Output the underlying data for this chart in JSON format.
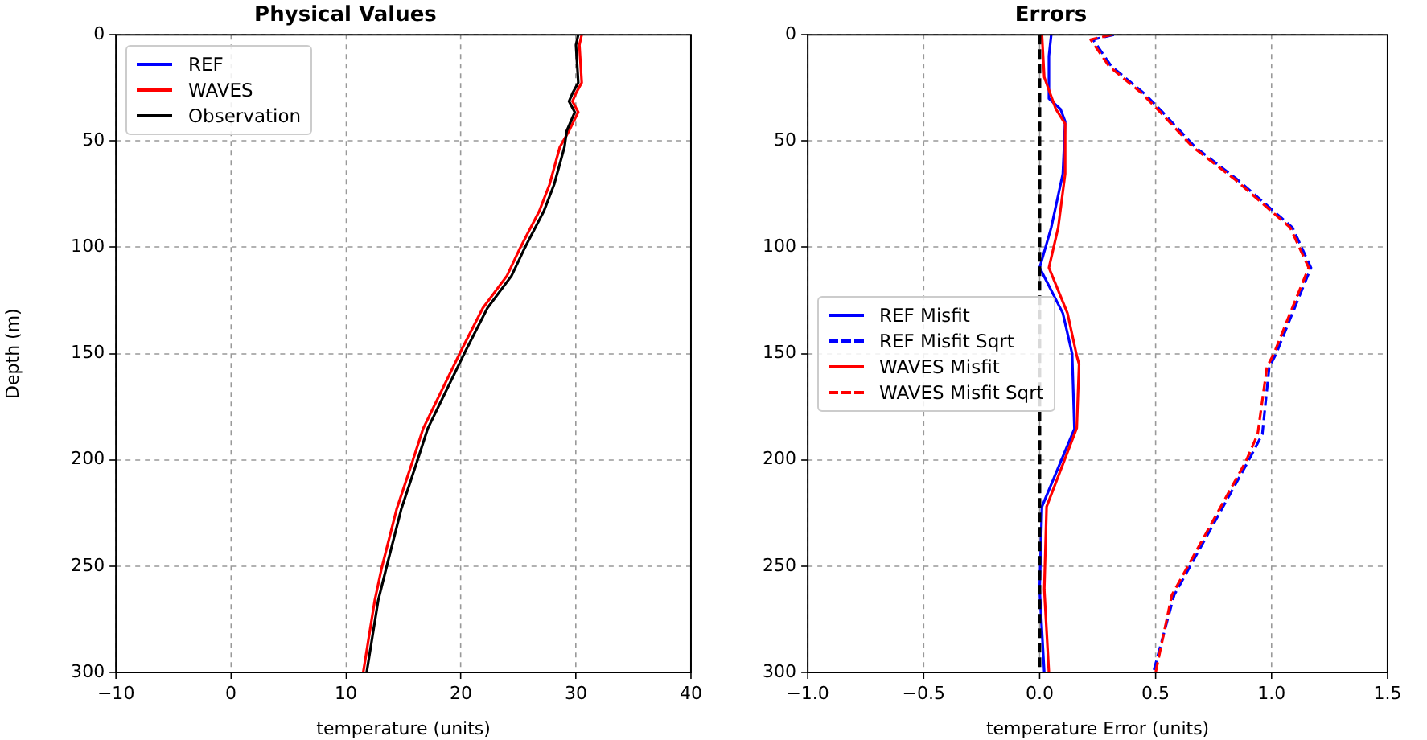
{
  "chart_data": [
    {
      "type": "line",
      "title": "Physical Values",
      "xlabel": "temperature (units)",
      "ylabel": "Depth (m)",
      "xlim": [
        -10,
        40
      ],
      "xticks": [
        {
          "value": -10,
          "label": "−10"
        },
        0,
        10,
        20,
        30,
        40
      ],
      "ylim": [
        300,
        0
      ],
      "yticks": [
        0,
        50,
        100,
        150,
        200,
        250,
        300
      ],
      "grid": true,
      "legend": "top left",
      "series": [
        {
          "name": "REF",
          "color": "#0000ff",
          "line_style": "solid",
          "x": [
            null,
            null,
            null,
            null,
            null,
            null,
            null,
            null,
            null,
            null,
            null,
            null,
            null,
            null,
            null,
            null,
            null,
            null,
            null,
            null
          ],
          "values": [
            null,
            null,
            null,
            null,
            null,
            null,
            null,
            null,
            null,
            null,
            null,
            null,
            null,
            null,
            null,
            null,
            null,
            null,
            null,
            null
          ]
        },
        {
          "name": "WAVES",
          "color": "#ff0000",
          "line_style": "solid",
          "x": [
            30.5,
            30.3,
            30.5,
            30.0,
            29.7,
            30.2,
            29.4,
            28.6,
            27.7,
            26.8,
            25.1,
            24.0,
            21.9,
            20.0,
            16.7,
            15.8,
            14.4,
            13.1,
            12.5,
            11.5
          ],
          "values": [
            0,
            4.8,
            22.5,
            27.5,
            31.3,
            36.4,
            45.2,
            52.8,
            70.5,
            83.1,
            100.8,
            113.4,
            128.6,
            148.7,
            185.4,
            200.5,
            223.3,
            251,
            266.2,
            300
          ]
        },
        {
          "name": "Observation",
          "color": "#000000",
          "line_style": "solid",
          "x": [
            30.2,
            30.0,
            30.2,
            29.7,
            29.4,
            29.9,
            29.2,
            29.0,
            28.1,
            27.2,
            25.5,
            24.4,
            22.3,
            20.4,
            17.1,
            16.2,
            14.8,
            13.5,
            12.8,
            11.8
          ],
          "values": [
            0,
            4.8,
            22.5,
            27.5,
            31.3,
            36.4,
            45.2,
            52.8,
            70.5,
            83.1,
            100.8,
            113.4,
            128.6,
            148.7,
            185.4,
            200.5,
            223.3,
            251,
            266.2,
            300
          ]
        }
      ]
    },
    {
      "type": "line",
      "title": "Errors",
      "xlabel": "temperature Error (units)",
      "xlim": [
        -1,
        1.5
      ],
      "xticks": [
        {
          "value": -1,
          "label": "−1.0"
        },
        {
          "value": -0.5,
          "label": "−0.5"
        },
        {
          "value": 0,
          "label": "0.0"
        },
        0.5,
        {
          "value": 1,
          "label": "1.0"
        },
        1.5
      ],
      "ylim": [
        300,
        0
      ],
      "yticks": [
        0,
        50,
        100,
        150,
        200,
        250,
        300
      ],
      "grid": true,
      "legend": "center left",
      "ref_lines": [
        {
          "axis": "x",
          "value": 0,
          "color": "#000000",
          "line_style": "dashed"
        }
      ],
      "series": [
        {
          "name": "REF Misfit",
          "color": "#0000ff",
          "line_style": "solid",
          "x": [
            0.05,
            0.04,
            0.04,
            0.09,
            0.11,
            0.1,
            0.05,
            0.0,
            0.1,
            0.14,
            0.15,
            0.01,
            0.0,
            0.02
          ],
          "values": [
            0,
            10,
            30,
            35,
            40.8,
            65.4,
            90.7,
            109.6,
            131,
            150,
            185.4,
            222,
            261,
            300
          ]
        },
        {
          "name": "REF Misfit Sqrt",
          "color": "#0000ff",
          "line_style": "dashed",
          "x": [
            0.32,
            0.23,
            0.31,
            0.45,
            0.53,
            0.67,
            0.85,
            1.09,
            1.17,
            1.09,
            1.02,
            0.99,
            0.96,
            0.9,
            0.58,
            0.49
          ],
          "values": [
            0,
            2.3,
            14.9,
            27.5,
            36.4,
            52.8,
            67.9,
            90.7,
            109.6,
            131,
            150,
            156.3,
            187.9,
            200.5,
            263.6,
            300
          ]
        },
        {
          "name": "WAVES Misfit",
          "color": "#ff0000",
          "line_style": "solid",
          "x": [
            0.01,
            0.02,
            0.07,
            0.11,
            0.11,
            0.08,
            0.04,
            0.12,
            0.16,
            0.17,
            0.16,
            0.03,
            0.02,
            0.04
          ],
          "values": [
            0,
            20,
            35,
            41.9,
            65.4,
            90.7,
            109.6,
            131,
            151,
            155,
            185,
            222,
            261,
            300
          ]
        },
        {
          "name": "WAVES Misfit Sqrt",
          "color": "#ff0000",
          "line_style": "dashed",
          "x": [
            0.31,
            0.22,
            0.3,
            0.44,
            0.52,
            0.66,
            0.84,
            1.08,
            1.16,
            1.08,
            1.01,
            0.98,
            0.94,
            0.89,
            0.57,
            0.5
          ],
          "values": [
            0,
            2.3,
            14.9,
            27.5,
            36.4,
            52.8,
            67.9,
            90.7,
            109.6,
            131,
            150,
            156.3,
            187.9,
            200.5,
            263.6,
            300
          ]
        }
      ]
    }
  ]
}
